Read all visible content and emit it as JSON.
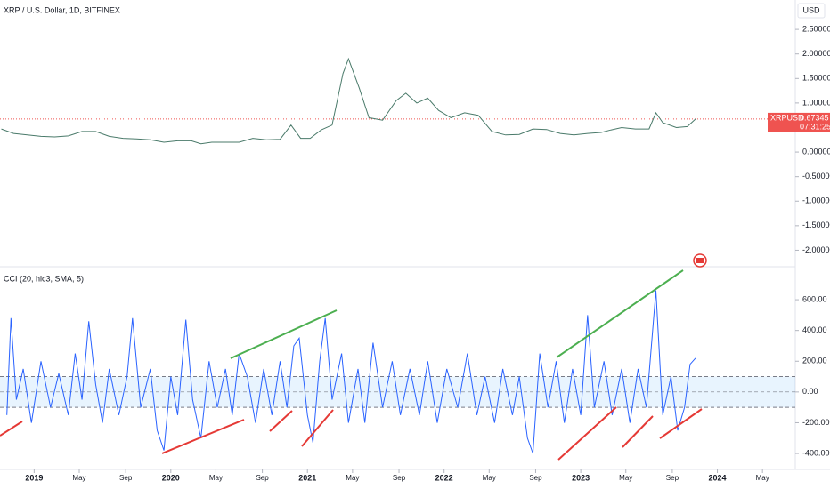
{
  "chart_data": [
    {
      "type": "line",
      "title": "XRP / U.S. Dollar, 1D, BITFINEX",
      "currency": "USD",
      "symbol": "XRPUSD",
      "countdown": "07:31:25",
      "xlim": [
        2018.75,
        2024.57
      ],
      "ylim": [
        -2.3,
        3.1
      ],
      "yticks": [
        {
          "value": 2.5,
          "label": "2.50000"
        },
        {
          "value": 2,
          "label": "2.00000"
        },
        {
          "value": 1.5,
          "label": "1.50000"
        },
        {
          "value": 1,
          "label": "1.00000"
        },
        {
          "value": 0.5,
          "label": "0.50000"
        },
        {
          "value": 0,
          "label": "0.00000"
        },
        {
          "value": -0.5,
          "label": "-0.50000"
        },
        {
          "value": -1,
          "label": "-1.00000"
        },
        {
          "value": -1.5,
          "label": "-1.50000"
        },
        {
          "value": -2,
          "label": "-2.00000"
        }
      ],
      "series": [
        {
          "name": "XRPUSD",
          "color": "#26a69a",
          "x": [
            2018.76,
            2018.85,
            2018.95,
            2019.05,
            2019.15,
            2019.25,
            2019.35,
            2019.45,
            2019.55,
            2019.65,
            2019.75,
            2019.85,
            2019.95,
            2020.05,
            2020.15,
            2020.22,
            2020.3,
            2020.4,
            2020.5,
            2020.6,
            2020.7,
            2020.8,
            2020.88,
            2020.95,
            2021.02,
            2021.1,
            2021.18,
            2021.26,
            2021.3,
            2021.38,
            2021.45,
            2021.55,
            2021.65,
            2021.72,
            2021.8,
            2021.88,
            2021.96,
            2022.05,
            2022.15,
            2022.25,
            2022.35,
            2022.45,
            2022.55,
            2022.65,
            2022.75,
            2022.85,
            2022.95,
            2023.05,
            2023.15,
            2023.22,
            2023.3,
            2023.4,
            2023.5,
            2023.55,
            2023.6,
            2023.7,
            2023.78,
            2023.84
          ],
          "values": [
            0.47,
            0.38,
            0.35,
            0.32,
            0.31,
            0.33,
            0.42,
            0.42,
            0.32,
            0.28,
            0.27,
            0.25,
            0.2,
            0.23,
            0.23,
            0.17,
            0.2,
            0.2,
            0.2,
            0.28,
            0.25,
            0.26,
            0.55,
            0.28,
            0.28,
            0.45,
            0.55,
            1.6,
            1.9,
            1.3,
            0.7,
            0.65,
            1.05,
            1.2,
            1.0,
            1.1,
            0.85,
            0.7,
            0.8,
            0.75,
            0.42,
            0.35,
            0.36,
            0.47,
            0.46,
            0.38,
            0.35,
            0.38,
            0.4,
            0.45,
            0.5,
            0.47,
            0.47,
            0.8,
            0.6,
            0.5,
            0.52,
            0.67345
          ]
        }
      ]
    },
    {
      "type": "line",
      "title": "CCI (20, hlc3, SMA, 5)",
      "xlim": [
        2018.75,
        2024.57
      ],
      "ylim": [
        -498,
        797
      ],
      "xticks": [
        {
          "value": 2019,
          "label": "2019"
        },
        {
          "value": 2019.33,
          "label": "May"
        },
        {
          "value": 2019.67,
          "label": "Sep"
        },
        {
          "value": 2020,
          "label": "2020"
        },
        {
          "value": 2020.33,
          "label": "May"
        },
        {
          "value": 2020.67,
          "label": "Sep"
        },
        {
          "value": 2021,
          "label": "2021"
        },
        {
          "value": 2021.33,
          "label": "May"
        },
        {
          "value": 2021.67,
          "label": "Sep"
        },
        {
          "value": 2022,
          "label": "2022"
        },
        {
          "value": 2022.33,
          "label": "May"
        },
        {
          "value": 2022.67,
          "label": "Sep"
        },
        {
          "value": 2023,
          "label": "2023"
        },
        {
          "value": 2023.33,
          "label": "May"
        },
        {
          "value": 2023.67,
          "label": "Sep"
        },
        {
          "value": 2024,
          "label": "2024"
        },
        {
          "value": 2024.33,
          "label": "May"
        }
      ],
      "yticks": [
        {
          "value": 600,
          "label": "600.00"
        },
        {
          "value": 400,
          "label": "400.00"
        },
        {
          "value": 200,
          "label": "200.00"
        },
        {
          "value": 0,
          "label": "0.00"
        },
        {
          "value": -200,
          "label": "-200.00"
        },
        {
          "value": -400,
          "label": "-400.00"
        }
      ],
      "bands": {
        "upper": 100,
        "middle": 0,
        "lower": -100
      },
      "series": [
        {
          "name": "CCI",
          "color": "#2962ff",
          "x": [
            2018.8,
            2018.83,
            2018.87,
            2018.92,
            2018.98,
            2019.05,
            2019.12,
            2019.18,
            2019.25,
            2019.3,
            2019.35,
            2019.4,
            2019.45,
            2019.5,
            2019.55,
            2019.62,
            2019.68,
            2019.72,
            2019.78,
            2019.85,
            2019.9,
            2019.95,
            2020.0,
            2020.05,
            2020.11,
            2020.16,
            2020.22,
            2020.28,
            2020.34,
            2020.4,
            2020.45,
            2020.5,
            2020.56,
            2020.62,
            2020.68,
            2020.74,
            2020.8,
            2020.85,
            2020.9,
            2020.94,
            2021.0,
            2021.04,
            2021.09,
            2021.13,
            2021.18,
            2021.25,
            2021.3,
            2021.37,
            2021.42,
            2021.48,
            2021.55,
            2021.62,
            2021.68,
            2021.75,
            2021.82,
            2021.88,
            2021.95,
            2022.02,
            2022.1,
            2022.17,
            2022.24,
            2022.3,
            2022.37,
            2022.43,
            2022.5,
            2022.55,
            2022.61,
            2022.65,
            2022.7,
            2022.76,
            2022.82,
            2022.88,
            2022.94,
            2023.0,
            2023.05,
            2023.1,
            2023.17,
            2023.23,
            2023.3,
            2023.36,
            2023.42,
            2023.48,
            2023.55,
            2023.6,
            2023.66,
            2023.71,
            2023.76,
            2023.8,
            2023.84
          ],
          "values": [
            -150,
            480,
            -50,
            150,
            -200,
            200,
            -100,
            120,
            -150,
            250,
            -50,
            460,
            50,
            -200,
            150,
            -150,
            100,
            480,
            -100,
            150,
            -250,
            -380,
            100,
            -150,
            470,
            -50,
            -300,
            200,
            -100,
            150,
            -150,
            250,
            100,
            -200,
            150,
            -150,
            200,
            -100,
            300,
            350,
            -150,
            -330,
            200,
            480,
            -50,
            250,
            -200,
            150,
            -200,
            320,
            -100,
            200,
            -150,
            150,
            -150,
            200,
            -200,
            150,
            -100,
            250,
            -150,
            100,
            -200,
            150,
            -150,
            100,
            -300,
            -400,
            250,
            -100,
            200,
            -200,
            150,
            -150,
            500,
            -100,
            200,
            -150,
            150,
            -200,
            150,
            -100,
            660,
            -150,
            100,
            -250,
            -100,
            180,
            220
          ]
        }
      ]
    }
  ]
}
